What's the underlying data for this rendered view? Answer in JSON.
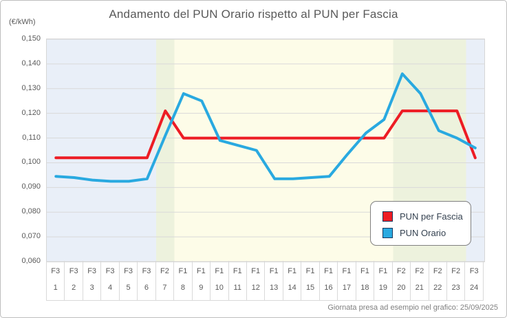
{
  "header": {
    "title": "Andamento del PUN Orario rispetto al PUN per Fascia",
    "y_axis_unit": "(€/kWh)"
  },
  "legend": [
    {
      "label": "PUN per Fascia",
      "color": "#ed1c24"
    },
    {
      "label": "PUN Orario",
      "color": "#29a9e0"
    }
  ],
  "footer": {
    "note": "Giornata presa ad esempio nel grafico: 25/09/2025"
  },
  "chart_data": {
    "type": "line",
    "title": "Andamento del PUN Orario rispetto al PUN per Fascia",
    "ylabel": "(€/kWh)",
    "xlabel": "",
    "ylim": [
      0.06,
      0.15
    ],
    "ytick_step": 0.01,
    "ytick_labels": [
      "0,150",
      "0,140",
      "0,130",
      "0,120",
      "0,110",
      "0,100",
      "0,090",
      "0,080",
      "0,070",
      "0,060"
    ],
    "hours": [
      "1",
      "2",
      "3",
      "4",
      "5",
      "6",
      "7",
      "8",
      "9",
      "10",
      "11",
      "12",
      "13",
      "14",
      "15",
      "16",
      "17",
      "18",
      "19",
      "20",
      "21",
      "22",
      "23",
      "24"
    ],
    "fascia": [
      "F3",
      "F3",
      "F3",
      "F3",
      "F3",
      "F3",
      "F2",
      "F1",
      "F1",
      "F1",
      "F1",
      "F1",
      "F1",
      "F1",
      "F1",
      "F1",
      "F1",
      "F1",
      "F1",
      "F2",
      "F2",
      "F2",
      "F2",
      "F3"
    ],
    "band_colors": {
      "F1": "#fdfce8",
      "F2": "#edf2dd",
      "F3": "#e9eff8"
    },
    "grid": true,
    "gridline_color": "#d9d9d9",
    "legend_position": "inside-bottom-right",
    "series": [
      {
        "name": "PUN per Fascia",
        "color": "#ed1c24",
        "values": [
          0.102,
          0.102,
          0.102,
          0.102,
          0.102,
          0.102,
          0.121,
          0.11,
          0.11,
          0.11,
          0.11,
          0.11,
          0.11,
          0.11,
          0.11,
          0.11,
          0.11,
          0.11,
          0.11,
          0.121,
          0.121,
          0.121,
          0.121,
          0.102
        ]
      },
      {
        "name": "PUN Orario",
        "color": "#29a9e0",
        "values": [
          0.0945,
          0.094,
          0.093,
          0.0925,
          0.0925,
          0.0935,
          0.111,
          0.128,
          0.125,
          0.109,
          0.107,
          0.105,
          0.0935,
          0.0935,
          0.094,
          0.0945,
          0.1035,
          0.112,
          0.1175,
          0.136,
          0.128,
          0.113,
          0.11,
          0.106
        ]
      }
    ]
  }
}
